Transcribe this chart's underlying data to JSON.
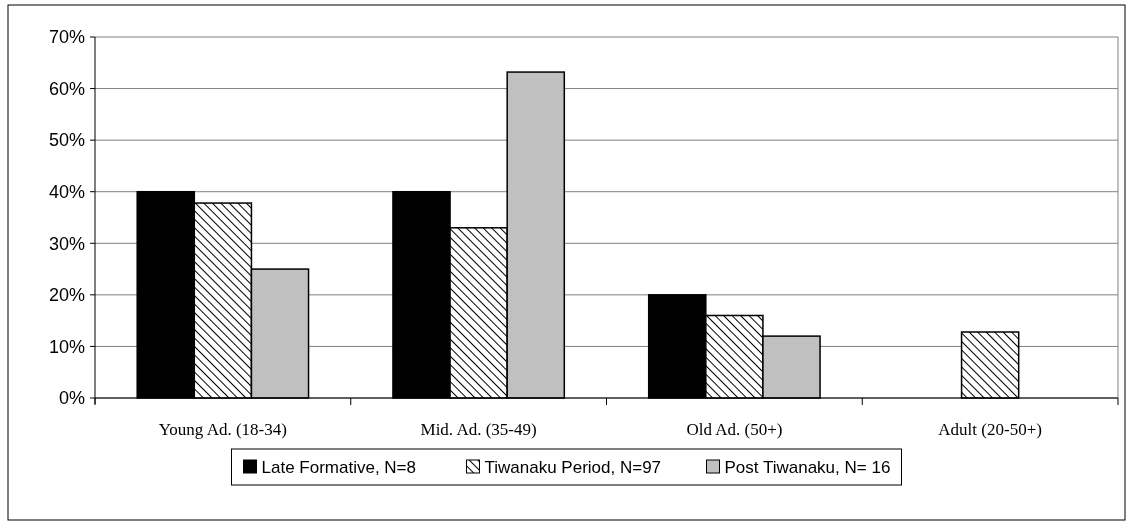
{
  "chart_data": {
    "type": "bar",
    "categories": [
      "Young Ad. (18-34)",
      "Mid. Ad. (35-49)",
      "Old Ad. (50+)",
      "Adult (20-50+)"
    ],
    "series": [
      {
        "name": "Late Formative, N=8",
        "color": "#000000",
        "values": [
          40,
          40,
          20,
          0
        ]
      },
      {
        "name": "Tiwanaku Period, N=97",
        "color": "#000000",
        "values": [
          37.8,
          33,
          16,
          12.8
        ]
      },
      {
        "name": "Post Tiwanaku, N= 16",
        "color": "#c0c0c0",
        "values": [
          25,
          63.2,
          12,
          0
        ]
      }
    ],
    "ylim": [
      0,
      70
    ],
    "yticks": [
      {
        "value": 0,
        "label": "0%"
      },
      {
        "value": 10,
        "label": "10%"
      },
      {
        "value": 20,
        "label": "20%"
      },
      {
        "value": 30,
        "label": "30%"
      },
      {
        "value": 40,
        "label": "40%"
      },
      {
        "value": 50,
        "label": "50%"
      },
      {
        "value": 60,
        "label": "60%"
      },
      {
        "value": 70,
        "label": "70%"
      }
    ],
    "grid": "y",
    "legend": "bottom"
  }
}
